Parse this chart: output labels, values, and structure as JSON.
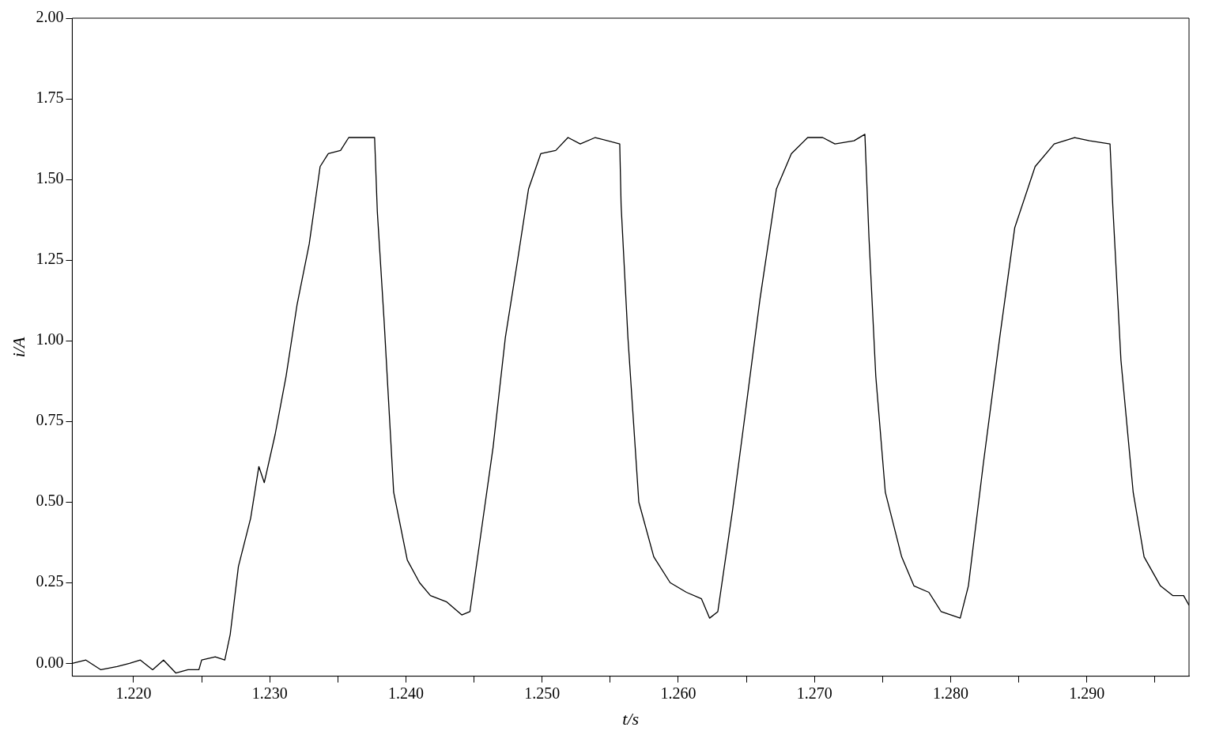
{
  "chart_data": {
    "type": "line",
    "xlabel": "t/s",
    "ylabel": "i/A",
    "xlim": [
      1.2155,
      1.2975
    ],
    "ylim": [
      -0.04,
      2.0
    ],
    "xticks": [
      {
        "value": 1.22,
        "label": "1.220"
      },
      {
        "value": 1.225,
        "label": null
      },
      {
        "value": 1.23,
        "label": "1.230"
      },
      {
        "value": 1.235,
        "label": null
      },
      {
        "value": 1.24,
        "label": "1.240"
      },
      {
        "value": 1.245,
        "label": null
      },
      {
        "value": 1.25,
        "label": "1.250"
      },
      {
        "value": 1.255,
        "label": null
      },
      {
        "value": 1.26,
        "label": "1.260"
      },
      {
        "value": 1.265,
        "label": null
      },
      {
        "value": 1.27,
        "label": "1.270"
      },
      {
        "value": 1.275,
        "label": null
      },
      {
        "value": 1.28,
        "label": "1.280"
      },
      {
        "value": 1.285,
        "label": null
      },
      {
        "value": 1.29,
        "label": "1.290"
      },
      {
        "value": 1.295,
        "label": null
      }
    ],
    "yticks": [
      {
        "value": 0,
        "label": "0.00"
      },
      {
        "value": 0.25,
        "label": "0.25"
      },
      {
        "value": 0.5,
        "label": "0.50"
      },
      {
        "value": 0.75,
        "label": "0.75"
      },
      {
        "value": 1,
        "label": "1.00"
      },
      {
        "value": 1.25,
        "label": "1.25"
      },
      {
        "value": 1.5,
        "label": "1.50"
      },
      {
        "value": 1.75,
        "label": "1.75"
      },
      {
        "value": 2,
        "label": "2.00"
      }
    ],
    "grid": false,
    "legend": false,
    "marker": "none",
    "line_style": "solid",
    "series": [
      {
        "color": "#000000",
        "x": [
          1.2155,
          1.2165,
          1.2176,
          1.2188,
          1.2197,
          1.2205,
          1.2214,
          1.2222,
          1.2231,
          1.224,
          1.2248,
          1.225,
          1.226,
          1.2267,
          1.2271,
          1.2277,
          1.2286,
          1.2292,
          1.2296,
          1.2304,
          1.2312,
          1.232,
          1.2329,
          1.2337,
          1.2343,
          1.2352,
          1.2358,
          1.2366,
          1.2377,
          1.2379,
          1.2384,
          1.2391,
          1.2401,
          1.241,
          1.2418,
          1.243,
          1.2441,
          1.2447,
          1.2456,
          1.2464,
          1.2473,
          1.2482,
          1.249,
          1.2499,
          1.251,
          1.2519,
          1.2528,
          1.2539,
          1.2557,
          1.2558,
          1.2563,
          1.2571,
          1.2582,
          1.2594,
          1.2606,
          1.2617,
          1.2623,
          1.2629,
          1.264,
          1.2649,
          1.266,
          1.2672,
          1.2683,
          1.2695,
          1.2706,
          1.2715,
          1.2729,
          1.2737,
          1.274,
          1.2745,
          1.2752,
          1.2764,
          1.2773,
          1.2784,
          1.2793,
          1.2807,
          1.2813,
          1.2824,
          1.2836,
          1.2847,
          1.2862,
          1.2876,
          1.2891,
          1.2902,
          1.2917,
          1.2919,
          1.2925,
          1.2934,
          1.2942,
          1.2954,
          1.2963,
          1.2971,
          1.2975
        ],
        "values": [
          0,
          0.01,
          -0.02,
          -0.01,
          0,
          0.01,
          -0.02,
          0.01,
          -0.03,
          -0.02,
          -0.02,
          0.01,
          0.02,
          0.01,
          0.09,
          0.3,
          0.45,
          0.61,
          0.56,
          0.71,
          0.89,
          1.11,
          1.3,
          1.54,
          1.58,
          1.59,
          1.63,
          1.63,
          1.63,
          1.4,
          1.06,
          0.53,
          0.32,
          0.25,
          0.21,
          0.19,
          0.15,
          0.16,
          0.43,
          0.67,
          1.01,
          1.25,
          1.47,
          1.58,
          1.59,
          1.63,
          1.61,
          1.63,
          1.61,
          1.42,
          1.01,
          0.5,
          0.33,
          0.25,
          0.22,
          0.2,
          0.14,
          0.16,
          0.48,
          0.77,
          1.13,
          1.47,
          1.58,
          1.63,
          1.63,
          1.61,
          1.62,
          1.64,
          1.32,
          0.89,
          0.53,
          0.33,
          0.24,
          0.22,
          0.16,
          0.14,
          0.24,
          0.62,
          1.01,
          1.35,
          1.54,
          1.61,
          1.63,
          1.62,
          1.61,
          1.42,
          0.94,
          0.53,
          0.33,
          0.24,
          0.21,
          0.21,
          0.18
        ]
      }
    ]
  }
}
